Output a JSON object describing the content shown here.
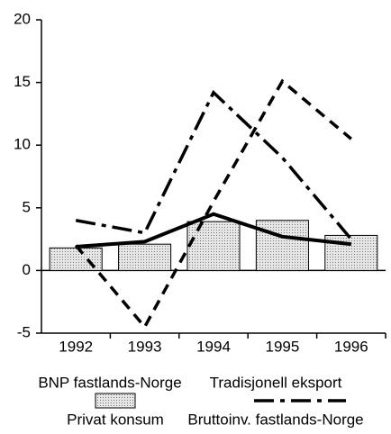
{
  "chart_data": {
    "type": "bar",
    "categories": [
      "1992",
      "1993",
      "1994",
      "1995",
      "1996"
    ],
    "series": [
      {
        "name": "BNP fastlands-Norge",
        "kind": "line",
        "dash": "solid",
        "color": "#000000",
        "values": [
          1.9,
          2.3,
          4.5,
          2.7,
          2.1
        ]
      },
      {
        "name": "Tradisjonell eksport",
        "kind": "line",
        "dash": "dash",
        "color": "#000000",
        "values": [
          2.0,
          -4.5,
          5.5,
          15.1,
          10.5
        ]
      },
      {
        "name": "Privat konsum",
        "kind": "bar",
        "color": "#d4d4d4",
        "values": [
          1.8,
          2.1,
          3.9,
          4.0,
          2.8
        ]
      },
      {
        "name": "Bruttoinv. fastlands-Norge",
        "kind": "line",
        "dash": "dashdot",
        "color": "#000000",
        "values": [
          4.0,
          3.0,
          14.2,
          9.0,
          2.5
        ]
      }
    ],
    "ylim": [
      -5,
      20
    ],
    "yticks": [
      -5,
      0,
      5,
      10,
      15,
      20
    ]
  }
}
